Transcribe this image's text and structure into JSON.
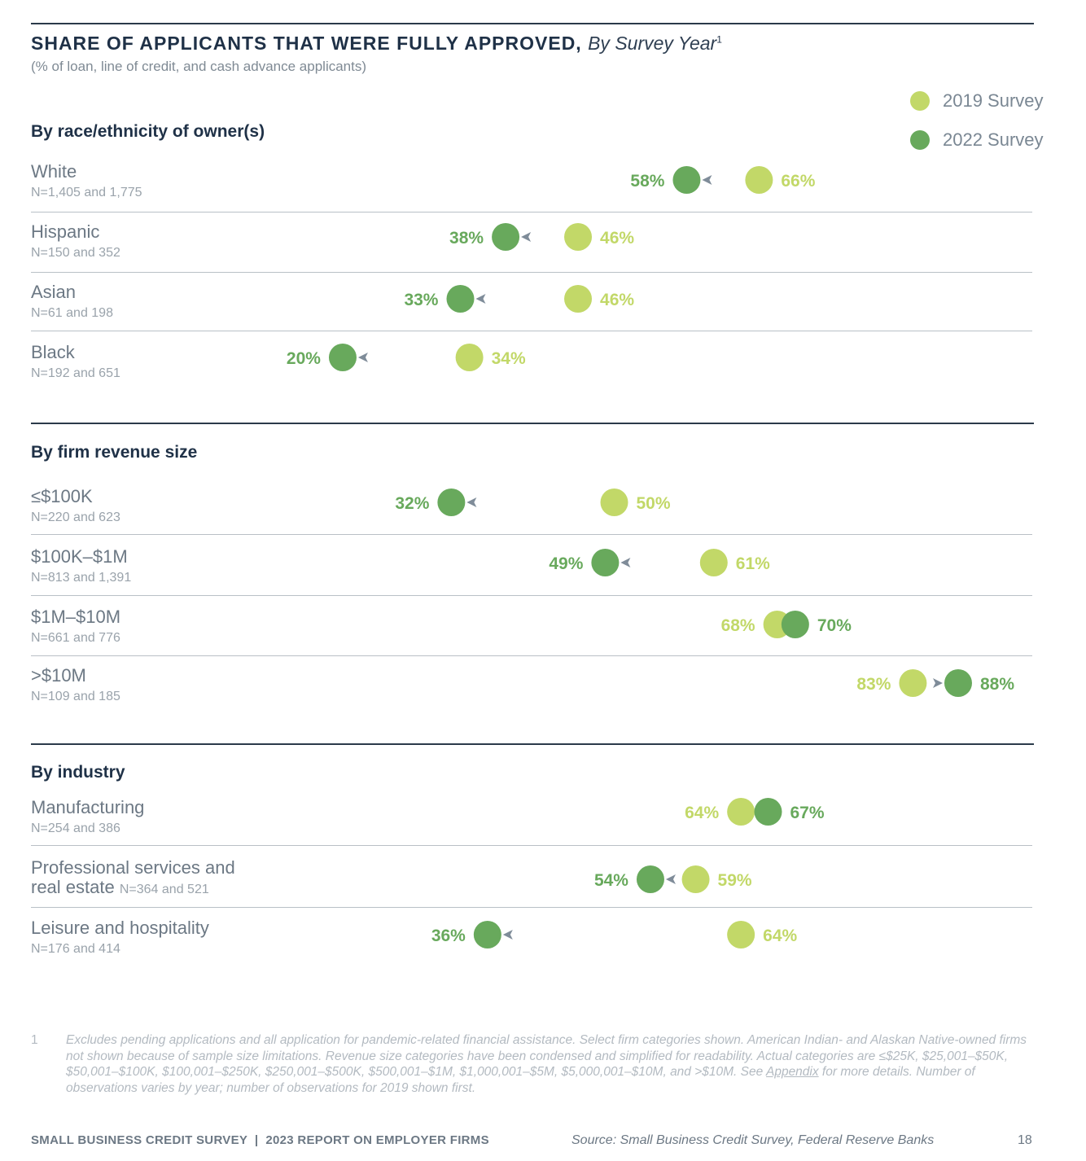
{
  "header": {
    "title_bold": "SHARE OF APPLICANTS THAT WERE FULLY APPROVED,",
    "title_italic": "By Survey Year",
    "title_footnote": "1",
    "subtitle": "(% of loan, line of credit, and cash advance applicants)"
  },
  "legend": [
    {
      "label": "2019 Survey",
      "color": "#c2d868"
    },
    {
      "label": "2022 Survey",
      "color": "#68a95c"
    }
  ],
  "sections": [
    {
      "title": "By race/ethnicity of owner(s)"
    },
    {
      "title": "By firm revenue size"
    },
    {
      "title": "By industry"
    }
  ],
  "chart_data": {
    "type": "dumbbell",
    "series": [
      {
        "name": "2019 Survey",
        "color": "#c2d868"
      },
      {
        "name": "2022 Survey",
        "color": "#68a95c"
      }
    ],
    "arrow_color": "#7f8c99",
    "rows": [
      {
        "section": 0,
        "label": "White",
        "n": "N=1,405 and 1,775",
        "v2019": 66,
        "v2022": 58,
        "l2019": "66%",
        "l2022": "58%"
      },
      {
        "section": 0,
        "label": "Hispanic",
        "n": "N=150 and 352",
        "v2019": 46,
        "v2022": 38,
        "l2019": "46%",
        "l2022": "38%"
      },
      {
        "section": 0,
        "label": "Asian",
        "n": "N=61 and 198",
        "v2019": 46,
        "v2022": 33,
        "l2019": "46%",
        "l2022": "33%"
      },
      {
        "section": 0,
        "label": "Black",
        "n": "N=192 and 651",
        "v2019": 34,
        "v2022": 20,
        "l2019": "34%",
        "l2022": "20%"
      },
      {
        "section": 1,
        "label": "≤$100K",
        "n": "N=220 and 623",
        "v2019": 50,
        "v2022": 32,
        "l2019": "50%",
        "l2022": "32%"
      },
      {
        "section": 1,
        "label": "$100K–$1M",
        "n": "N=813 and 1,391",
        "v2019": 61,
        "v2022": 49,
        "l2019": "61%",
        "l2022": "49%"
      },
      {
        "section": 1,
        "label": "$1M–$10M",
        "n": "N=661 and 776",
        "v2019": 68,
        "v2022": 70,
        "l2019": "68%",
        "l2022": "70%"
      },
      {
        "section": 1,
        "label": ">$10M",
        "n": "N=109 and 185",
        "v2019": 83,
        "v2022": 88,
        "l2019": "83%",
        "l2022": "88%"
      },
      {
        "section": 2,
        "label": "Manufacturing",
        "n": "N=254 and 386",
        "v2019": 64,
        "v2022": 67,
        "l2019": "64%",
        "l2022": "67%"
      },
      {
        "section": 2,
        "label": "Professional services and",
        "label2": "real estate",
        "n": "N=364 and 521",
        "v2019": 59,
        "v2022": 54,
        "l2019": "59%",
        "l2022": "54%"
      },
      {
        "section": 2,
        "label": "Leisure and hospitality",
        "n": "N=176 and 414",
        "v2019": 64,
        "v2022": 36,
        "l2019": "64%",
        "l2022": "36%"
      }
    ]
  },
  "footnote": {
    "number": "1",
    "text_before_link": "Excludes pending applications and all application for pandemic-related financial assistance. Select firm categories shown. American Indian- and Alaskan Native-owned firms not shown because of sample size limitations. Revenue size categories have been condensed and simplified for readability. Actual categories are ≤$25K, $25,001–$50K, $50,001–$100K, $100,001–$250K, $250,001–$500K, $500,001–$1M, $1,000,001–$5M, $5,000,001–$10M, and >$10M. See ",
    "link": "Appendix",
    "text_after_link": " for more details. Number of observations varies by year; number of observations for 2019 shown first."
  },
  "footer": {
    "left": "SMALL BUSINESS CREDIT SURVEY  |  2023 REPORT ON EMPLOYER FIRMS",
    "source": "Source: Small Business Credit Survey, Federal Reserve Banks",
    "page": "18"
  }
}
